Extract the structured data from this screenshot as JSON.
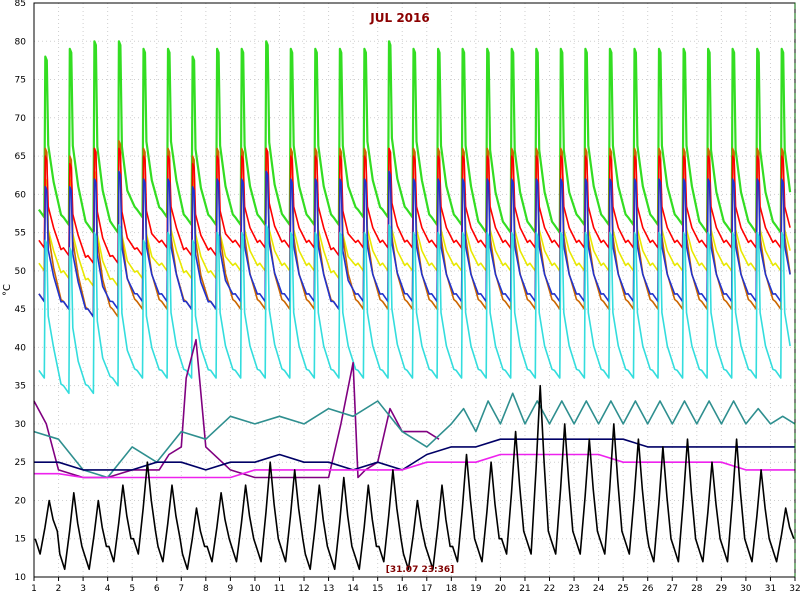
{
  "chart_data": {
    "type": "line",
    "title": "JUL 2016",
    "ylabel": "°C",
    "xlabel": "",
    "xlim": [
      1,
      32
    ],
    "ylim": [
      10,
      85
    ],
    "x_ticks": [
      "1",
      "2",
      "3",
      "4",
      "5",
      "6",
      "7",
      "8",
      "9",
      "10",
      "11",
      "12",
      "13",
      "14",
      "15",
      "16",
      "17",
      "18",
      "19",
      "20",
      "21",
      "22",
      "23",
      "24",
      "25",
      "26",
      "27",
      "28",
      "29",
      "30",
      "31",
      "32"
    ],
    "y_ticks": [
      "10",
      "15",
      "20",
      "25",
      "30",
      "35",
      "40",
      "45",
      "50",
      "55",
      "60",
      "65",
      "70",
      "75",
      "80",
      "85"
    ],
    "grid": true,
    "cursor_label": "[31.07 23:36]",
    "cursor_x": 32,
    "series": [
      {
        "color": "#33dd22",
        "shape": "spike",
        "base": [
          57,
          56,
          55,
          55,
          57,
          57,
          56,
          56,
          56,
          56,
          56,
          56,
          56,
          57,
          57,
          57,
          56,
          56,
          55,
          55,
          55,
          55,
          56,
          56,
          56,
          56,
          56,
          55,
          55,
          55,
          55
        ],
        "peak": [
          78,
          79,
          80,
          80,
          79,
          79,
          78,
          79,
          79,
          80,
          79,
          79,
          79,
          79,
          80,
          79,
          79,
          79,
          79,
          79,
          79,
          79,
          79,
          79,
          79,
          79,
          79,
          79,
          79,
          79,
          79
        ]
      },
      {
        "color": "#e8e800",
        "shape": "spike",
        "base": [
          50,
          49,
          48,
          48,
          49,
          50,
          49,
          49,
          50,
          50,
          50,
          50,
          49,
          50,
          50,
          50,
          50,
          50,
          50,
          50,
          50,
          50,
          50,
          50,
          50,
          50,
          50,
          50,
          50,
          50,
          50
        ],
        "peak": [
          62,
          62,
          63,
          63,
          62,
          62,
          62,
          62,
          62,
          62,
          62,
          62,
          62,
          62,
          62,
          62,
          62,
          62,
          62,
          62,
          62,
          62,
          62,
          62,
          62,
          62,
          62,
          62,
          62,
          62,
          62
        ]
      },
      {
        "color": "#cc6600",
        "shape": "spike",
        "base": [
          46,
          45,
          44,
          44,
          45,
          45,
          45,
          45,
          45,
          45,
          45,
          45,
          45,
          45,
          45,
          45,
          45,
          45,
          45,
          45,
          45,
          45,
          45,
          45,
          45,
          45,
          45,
          45,
          45,
          45,
          45
        ],
        "peak": [
          66,
          65,
          66,
          67,
          66,
          66,
          65,
          66,
          66,
          66,
          66,
          66,
          66,
          66,
          66,
          66,
          66,
          66,
          66,
          66,
          66,
          66,
          66,
          66,
          66,
          66,
          66,
          66,
          66,
          66,
          66
        ]
      },
      {
        "color": "#ff0000",
        "shape": "spike",
        "base": [
          53,
          52,
          51,
          51,
          52,
          53,
          52,
          52,
          53,
          53,
          53,
          53,
          52,
          53,
          53,
          53,
          53,
          53,
          53,
          53,
          53,
          53,
          53,
          53,
          53,
          53,
          53,
          53,
          53,
          53,
          53
        ],
        "peak": [
          65,
          64,
          66,
          66,
          65,
          65,
          64,
          65,
          65,
          66,
          65,
          65,
          65,
          65,
          66,
          65,
          65,
          65,
          65,
          65,
          65,
          65,
          65,
          65,
          65,
          65,
          65,
          65,
          65,
          65,
          65
        ]
      },
      {
        "color": "#2233cc",
        "shape": "spike",
        "base": [
          46,
          45,
          44,
          45,
          46,
          46,
          45,
          45,
          46,
          46,
          46,
          46,
          45,
          46,
          46,
          46,
          46,
          46,
          46,
          46,
          46,
          46,
          46,
          46,
          46,
          46,
          46,
          46,
          46,
          46,
          46
        ],
        "peak": [
          61,
          61,
          62,
          63,
          62,
          62,
          61,
          62,
          62,
          63,
          62,
          62,
          62,
          62,
          63,
          62,
          62,
          62,
          62,
          62,
          62,
          62,
          62,
          62,
          62,
          62,
          62,
          62,
          62,
          62,
          62
        ]
      },
      {
        "color": "#33dddd",
        "shape": "spike",
        "base": [
          36,
          34,
          34,
          35,
          36,
          36,
          36,
          36,
          36,
          36,
          36,
          36,
          36,
          36,
          36,
          36,
          36,
          36,
          36,
          36,
          36,
          36,
          36,
          36,
          36,
          36,
          36,
          36,
          36,
          36,
          36
        ],
        "peak": [
          54,
          53,
          55,
          56,
          54,
          55,
          54,
          55,
          55,
          56,
          55,
          55,
          55,
          55,
          56,
          55,
          55,
          55,
          55,
          55,
          55,
          55,
          55,
          55,
          55,
          55,
          55,
          55,
          55,
          55,
          55
        ]
      },
      {
        "color": "#800080",
        "x": [
          1,
          1.5,
          2,
          3,
          4,
          5,
          5.8,
          6.1,
          6.5,
          7,
          7.2,
          7.6,
          8,
          9,
          10,
          12,
          13,
          13.5,
          14,
          14.2,
          14.5,
          15,
          15.5,
          16,
          17,
          17.5
        ],
        "y": [
          33,
          30,
          24,
          23,
          23,
          24,
          24,
          24,
          26,
          27,
          36,
          41,
          27,
          24,
          23,
          23,
          23,
          30,
          38,
          23,
          24,
          25,
          32,
          29,
          29,
          28
        ]
      },
      {
        "color": "#2f8f8f",
        "x": [
          1,
          2,
          3,
          4,
          5,
          6,
          7,
          8,
          9,
          10,
          11,
          12,
          13,
          14,
          15,
          16,
          17,
          18,
          18.5,
          19,
          19.5,
          20,
          20.5,
          21,
          21.5,
          22,
          22.5,
          23,
          23.5,
          24,
          24.5,
          25,
          25.5,
          26,
          26.5,
          27,
          27.5,
          28,
          28.5,
          29,
          29.5,
          30,
          30.5,
          31,
          31.5,
          32
        ],
        "y": [
          29,
          28,
          24,
          23,
          27,
          25,
          29,
          28,
          31,
          30,
          31,
          30,
          32,
          31,
          33,
          29,
          27,
          30,
          32,
          29,
          33,
          30,
          34,
          30,
          33,
          30,
          33,
          30,
          33,
          30,
          33,
          30,
          33,
          30,
          33,
          30,
          33,
          30,
          33,
          30,
          33,
          30,
          32,
          30,
          31,
          30
        ]
      },
      {
        "color": "#000066",
        "x": [
          1,
          2,
          3,
          4,
          5,
          6,
          7,
          8,
          9,
          10,
          11,
          12,
          13,
          14,
          15,
          16,
          17,
          18,
          19,
          20,
          21,
          22,
          23,
          24,
          25,
          26,
          27,
          28,
          29,
          30,
          31,
          32
        ],
        "y": [
          25,
          25,
          24,
          24,
          24,
          25,
          25,
          24,
          25,
          25,
          26,
          25,
          25,
          24,
          25,
          24,
          26,
          27,
          27,
          28,
          28,
          28,
          28,
          28,
          28,
          27,
          27,
          27,
          27,
          27,
          27,
          27
        ]
      },
      {
        "color": "#ee22ee",
        "x": [
          1,
          2,
          3,
          4,
          5,
          6,
          7,
          8,
          9,
          10,
          11,
          12,
          13,
          14,
          15,
          16,
          17,
          18,
          19,
          20,
          21,
          22,
          23,
          24,
          25,
          26,
          27,
          28,
          29,
          30,
          31,
          32
        ],
        "y": [
          23.5,
          23.5,
          23,
          23,
          23,
          23,
          23,
          23,
          23,
          24,
          24,
          24,
          24,
          24,
          24,
          24,
          25,
          25,
          25,
          26,
          26,
          26,
          26,
          26,
          25,
          25,
          25,
          25,
          25,
          24,
          24,
          24
        ]
      },
      {
        "color": "#000000",
        "shape": "daily",
        "base": [
          13,
          11,
          11,
          12,
          13,
          12,
          11,
          12,
          12,
          12,
          12,
          11,
          11,
          11,
          12,
          11,
          11,
          12,
          12,
          13,
          13,
          13,
          13,
          13,
          13,
          12,
          12,
          12,
          12,
          12,
          12
        ],
        "peak": [
          20,
          21,
          20,
          22,
          25,
          22,
          19,
          21,
          22,
          25,
          24,
          22,
          23,
          22,
          24,
          20,
          22,
          26,
          25,
          29,
          35,
          30,
          28,
          30,
          28,
          27,
          28,
          25,
          28,
          24,
          19
        ]
      }
    ]
  }
}
